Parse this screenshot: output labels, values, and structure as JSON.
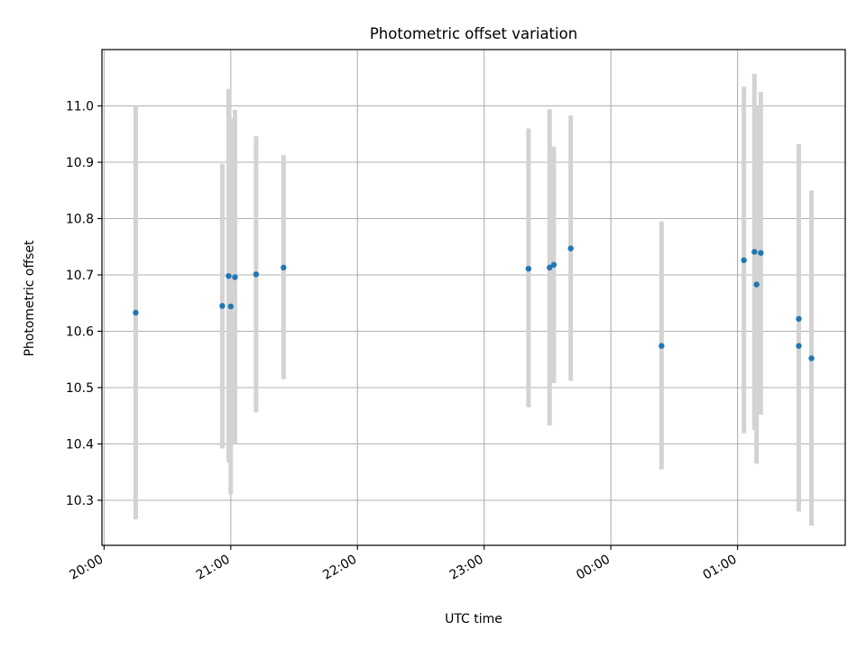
{
  "chart_data": {
    "type": "scatter",
    "title": "Photometric offset variation",
    "xlabel": "UTC time",
    "ylabel": "Photometric offset",
    "x_tick_labels": [
      "20:00",
      "21:00",
      "22:00",
      "23:00",
      "00:00",
      "01:00"
    ],
    "x_ticks": [
      "20:00",
      "21:00",
      "22:00",
      "23:00",
      "24:00",
      "25:00"
    ],
    "xlim": [
      "19:59",
      "25:51"
    ],
    "y_tick_labels": [
      "10.3",
      "10.4",
      "10.5",
      "10.6",
      "10.7",
      "10.8",
      "10.9",
      "11.0"
    ],
    "y_ticks": [
      10.3,
      10.4,
      10.5,
      10.6,
      10.7,
      10.8,
      10.9,
      11.0
    ],
    "ylim": [
      10.22,
      11.1
    ],
    "grid": true,
    "marker_color": "#1f77b4",
    "errorbar_color": "#d3d3d3",
    "points": [
      {
        "t": "20:15",
        "y": 10.633,
        "lo": 10.266,
        "hi": 11.0
      },
      {
        "t": "20:56",
        "y": 10.645,
        "lo": 10.392,
        "hi": 10.897
      },
      {
        "t": "20:59",
        "y": 10.698,
        "lo": 10.367,
        "hi": 11.03
      },
      {
        "t": "21:00",
        "y": 10.644,
        "lo": 10.31,
        "hi": 10.978
      },
      {
        "t": "21:02",
        "y": 10.696,
        "lo": 10.4,
        "hi": 10.993
      },
      {
        "t": "21:12",
        "y": 10.701,
        "lo": 10.456,
        "hi": 10.946
      },
      {
        "t": "21:25",
        "y": 10.713,
        "lo": 10.515,
        "hi": 10.913
      },
      {
        "t": "23:21",
        "y": 10.711,
        "lo": 10.465,
        "hi": 10.96
      },
      {
        "t": "23:31",
        "y": 10.713,
        "lo": 10.433,
        "hi": 10.994
      },
      {
        "t": "23:33",
        "y": 10.718,
        "lo": 10.508,
        "hi": 10.928
      },
      {
        "t": "23:41",
        "y": 10.747,
        "lo": 10.512,
        "hi": 10.983
      },
      {
        "t": "24:24",
        "y": 10.574,
        "lo": 10.355,
        "hi": 10.795
      },
      {
        "t": "25:03",
        "y": 10.726,
        "lo": 10.419,
        "hi": 11.034
      },
      {
        "t": "25:08",
        "y": 10.741,
        "lo": 10.425,
        "hi": 11.057
      },
      {
        "t": "25:09",
        "y": 10.683,
        "lo": 10.365,
        "hi": 11.0
      },
      {
        "t": "25:11",
        "y": 10.739,
        "lo": 10.452,
        "hi": 11.025
      },
      {
        "t": "25:29",
        "y": 10.622,
        "lo": 10.31,
        "hi": 10.932
      },
      {
        "t": "25:29",
        "y": 10.574,
        "lo": 10.28,
        "hi": 10.868
      },
      {
        "t": "25:35",
        "y": 10.552,
        "lo": 10.255,
        "hi": 10.85
      }
    ]
  }
}
